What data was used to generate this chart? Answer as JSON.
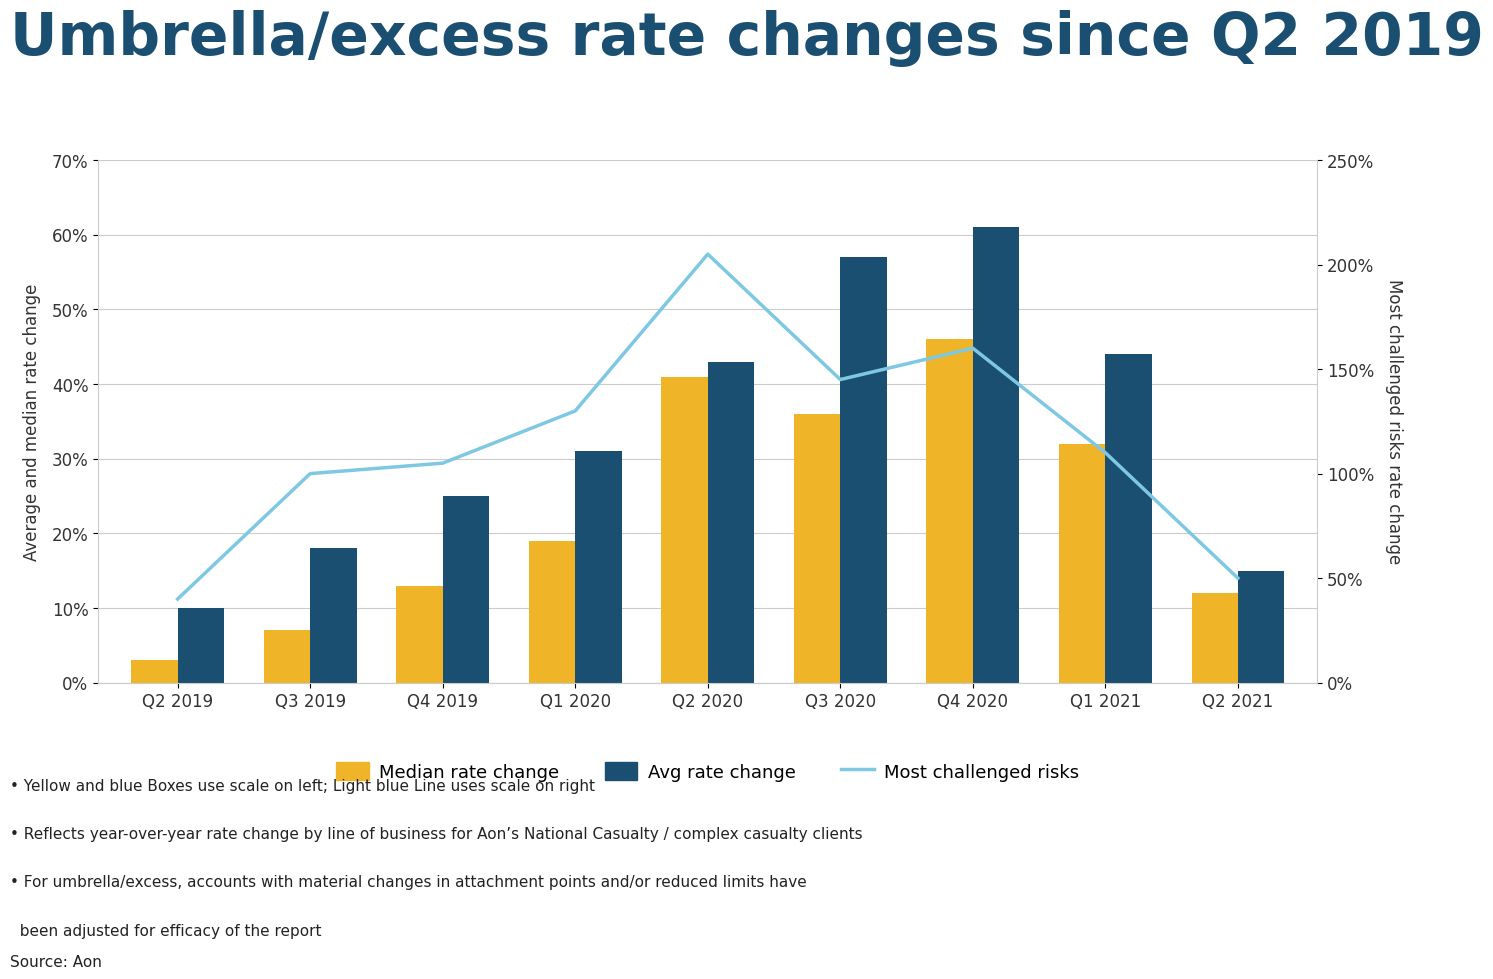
{
  "title": "Umbrella/excess rate changes since Q2 2019",
  "title_color": "#1b4f72",
  "title_fontsize": 42,
  "categories": [
    "Q2 2019",
    "Q3 2019",
    "Q4 2019",
    "Q1 2020",
    "Q2 2020",
    "Q3 2020",
    "Q4 2020",
    "Q1 2021",
    "Q2 2021"
  ],
  "median_values": [
    3,
    7,
    13,
    19,
    41,
    36,
    46,
    32,
    12
  ],
  "avg_values": [
    10,
    18,
    25,
    31,
    43,
    57,
    61,
    44,
    15
  ],
  "most_challenged": [
    40,
    100,
    105,
    130,
    205,
    145,
    160,
    110,
    50
  ],
  "bar_width": 0.35,
  "median_color": "#f0b429",
  "avg_color": "#1b4f72",
  "line_color": "#7ec8e3",
  "ylabel_left": "Average and median rate change",
  "ylabel_right": "Most challenged risks rate change",
  "ylim_left": [
    0,
    70
  ],
  "ylim_right": [
    0,
    250
  ],
  "yticks_left": [
    0,
    10,
    20,
    30,
    40,
    50,
    60,
    70
  ],
  "yticks_right": [
    0,
    50,
    100,
    150,
    200,
    250
  ],
  "ytick_labels_left": [
    "0%",
    "10%",
    "20%",
    "30%",
    "40%",
    "50%",
    "60%",
    "70%"
  ],
  "ytick_labels_right": [
    "0%",
    "50%",
    "100%",
    "150%",
    "200%",
    "250%"
  ],
  "legend_labels": [
    "Median rate change",
    "Avg rate change",
    "Most challenged risks"
  ],
  "footnote1": "• Yellow and blue Boxes use scale on left; Light blue Line uses scale on right",
  "footnote2": "• Reflects year-over-year rate change by line of business for Aon’s National Casualty / complex casualty clients",
  "footnote3": "• For umbrella/excess, accounts with material changes in attachment points and/or reduced limits have",
  "footnote3b": "  been adjusted for efficacy of the report",
  "source": "Source: Aon",
  "background_color": "#ffffff",
  "grid_color": "#cccccc"
}
